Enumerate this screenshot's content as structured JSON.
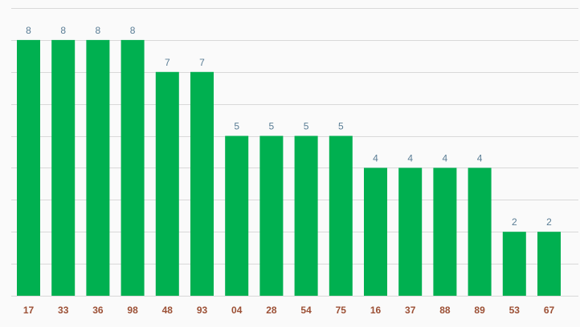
{
  "chart_data": {
    "type": "bar",
    "categories": [
      "17",
      "33",
      "36",
      "98",
      "48",
      "93",
      "04",
      "28",
      "54",
      "75",
      "16",
      "37",
      "88",
      "89",
      "53",
      "67"
    ],
    "values": [
      8,
      8,
      8,
      8,
      7,
      7,
      5,
      5,
      5,
      5,
      4,
      4,
      4,
      4,
      2,
      2
    ],
    "title": "",
    "xlabel": "",
    "ylabel": "",
    "ylim": [
      0,
      9
    ],
    "grid": true,
    "data_labels": true,
    "colors": {
      "bar": "#00b050",
      "value_label": "#5a7d95",
      "category_label": "#9c5035",
      "grid": "#d9d9d9",
      "background": "#fafafa"
    }
  }
}
